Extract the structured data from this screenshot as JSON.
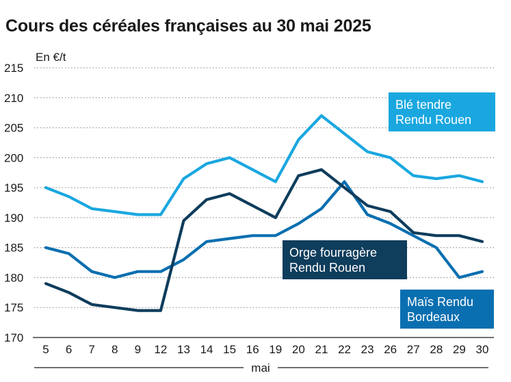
{
  "chart_data": {
    "type": "line",
    "title": "Cours des céréales françaises au 30 mai 2025",
    "ylabel": "En €/t",
    "xlabel": "mai",
    "ylim": [
      170,
      215
    ],
    "yticks": [
      170,
      175,
      180,
      185,
      190,
      195,
      200,
      205,
      210,
      215
    ],
    "categories": [
      "5",
      "6",
      "7",
      "8",
      "9",
      "12",
      "13",
      "14",
      "15",
      "16",
      "19",
      "20",
      "21",
      "22",
      "23",
      "26",
      "27",
      "28",
      "29",
      "30"
    ],
    "grid": true,
    "series": [
      {
        "name": "Blé tendre Rendu Rouen",
        "label_lines": [
          "Blé tendre",
          "Rendu Rouen"
        ],
        "color": "#1aa7e0",
        "values": [
          195,
          193.5,
          191.5,
          191,
          190.5,
          190.5,
          196.5,
          199,
          200,
          198,
          196,
          203,
          207,
          204,
          201,
          200,
          197,
          196.5,
          197,
          196
        ]
      },
      {
        "name": "Orge fourragère Rendu Rouen",
        "label_lines": [
          "Orge fourragère",
          "Rendu Rouen"
        ],
        "color": "#0f3d5c",
        "values": [
          179,
          177.5,
          175.5,
          175,
          174.5,
          174.5,
          189.5,
          193,
          194,
          192,
          190,
          197,
          198,
          195,
          192,
          191,
          187.5,
          187,
          187,
          186
        ]
      },
      {
        "name": "Maïs Rendu Bordeaux",
        "label_lines": [
          "Maïs Rendu",
          "Bordeaux"
        ],
        "color": "#0a6fb0",
        "values": [
          185,
          184,
          181,
          180,
          181,
          181,
          183,
          186,
          186.5,
          187,
          187,
          189,
          191.5,
          196,
          190.5,
          189,
          187,
          185,
          180,
          181
        ]
      }
    ]
  }
}
